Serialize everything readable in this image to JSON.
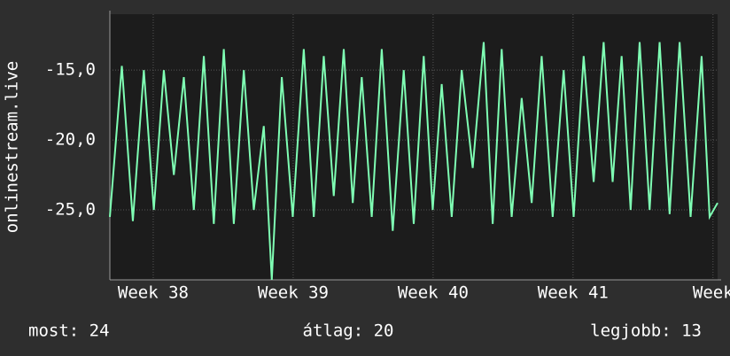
{
  "chart_data": {
    "type": "line",
    "y_label": "onlinestream.live",
    "x": [
      0,
      0.6,
      1.15,
      1.7,
      2.2,
      2.7,
      3.2,
      3.7,
      4.2,
      4.7,
      5.2,
      5.7,
      6.2,
      6.7,
      7.2,
      7.7,
      8.1,
      8.6,
      9.15,
      9.7,
      10.2,
      10.7,
      11.2,
      11.7,
      12.15,
      12.6,
      13.1,
      13.6,
      14.15,
      14.7,
      15.2,
      15.7,
      16.15,
      16.6,
      17.1,
      17.6,
      18.15,
      18.7,
      19.15,
      19.6,
      20.1,
      20.6,
      21.1,
      21.6,
      22.15,
      22.7,
      23.2,
      23.7,
      24.2,
      24.7,
      25.15,
      25.6,
      26.05,
      26.5,
      27.0,
      27.5,
      28.0,
      28.5,
      29.05,
      29.6,
      30.0,
      30.4
    ],
    "series": [
      {
        "color": "#7fffb4",
        "values": [
          -25.5,
          -14.7,
          -25.8,
          -15,
          -25,
          -15,
          -22.5,
          -15.5,
          -25,
          -14,
          -26,
          -13.5,
          -26,
          -15,
          -25,
          -19,
          -30,
          -15.5,
          -25.5,
          -13.5,
          -25.5,
          -14,
          -24,
          -13.5,
          -24.5,
          -15.5,
          -25.5,
          -13.5,
          -26.5,
          -15,
          -26,
          -14,
          -25,
          -16,
          -25.5,
          -15,
          -22,
          -13,
          -26,
          -13.5,
          -25.5,
          -17,
          -24.5,
          -14,
          -25.5,
          -15,
          -25.5,
          -14,
          -23,
          -13,
          -23,
          -14,
          -25,
          -13,
          -25,
          -13,
          -25.3,
          -13,
          -25.5,
          -14,
          -25.5,
          -24.5
        ]
      }
    ],
    "xlim": [
      0,
      30.4
    ],
    "xticks": [
      {
        "value": 2.17,
        "label": "Week 38"
      },
      {
        "value": 9.17,
        "label": "Week 39"
      },
      {
        "value": 16.17,
        "label": "Week 40"
      },
      {
        "value": 23.17,
        "label": "Week 41"
      },
      {
        "value": 30.17,
        "label": "Week"
      }
    ],
    "ylim": [
      -30,
      -11
    ],
    "yticks": [
      {
        "value": -25,
        "label": "-25,0"
      },
      {
        "value": -20,
        "label": "-20,0"
      },
      {
        "value": -15,
        "label": "-15,0"
      }
    ],
    "grid": true
  },
  "footer": [
    "most: 24",
    "átlag: 20",
    "legjobb: 13"
  ]
}
